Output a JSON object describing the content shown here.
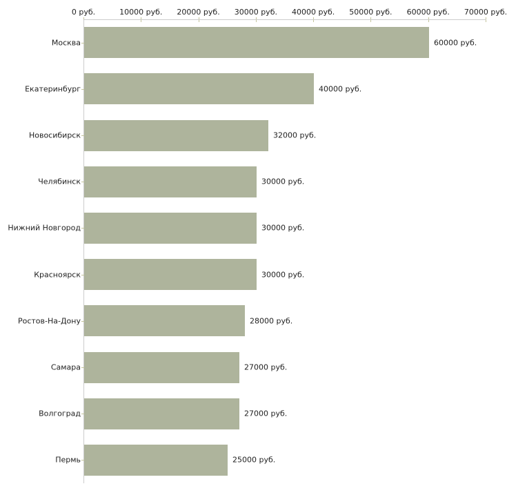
{
  "chart_data": {
    "type": "bar",
    "orientation": "horizontal",
    "title": "",
    "xlabel": "",
    "ylabel": "",
    "grid": "off",
    "legend_position": "none",
    "categories": [
      "Москва",
      "Екатеринбург",
      "Новосибирск",
      "Челябинск",
      "Нижний Новгород",
      "Красноярск",
      "Ростов-На-Дону",
      "Самара",
      "Волгоград",
      "Пермь"
    ],
    "values": [
      60000,
      40000,
      32000,
      30000,
      30000,
      30000,
      28000,
      27000,
      27000,
      25000
    ],
    "value_labels": [
      "60000 руб.",
      "40000 руб.",
      "32000 руб.",
      "30000 руб.",
      "30000 руб.",
      "30000 руб.",
      "28000 руб.",
      "27000 руб.",
      "27000 руб.",
      "25000 руб."
    ],
    "x_axis": {
      "position": "top",
      "tick_values": [
        0,
        10000,
        20000,
        30000,
        40000,
        50000,
        60000,
        70000
      ],
      "tick_labels": [
        "0 руб.",
        "10000 руб.",
        "20000 руб.",
        "30000 руб.",
        "40000 руб.",
        "50000 руб.",
        "60000 руб.",
        "70000 руб."
      ],
      "min": 0,
      "max": 70000
    },
    "colors": {
      "bar": "#aeb49c",
      "axis_line": "#cccccc",
      "tick_mark": "#c3c39b",
      "text": "#222222",
      "background": "#ffffff"
    }
  }
}
